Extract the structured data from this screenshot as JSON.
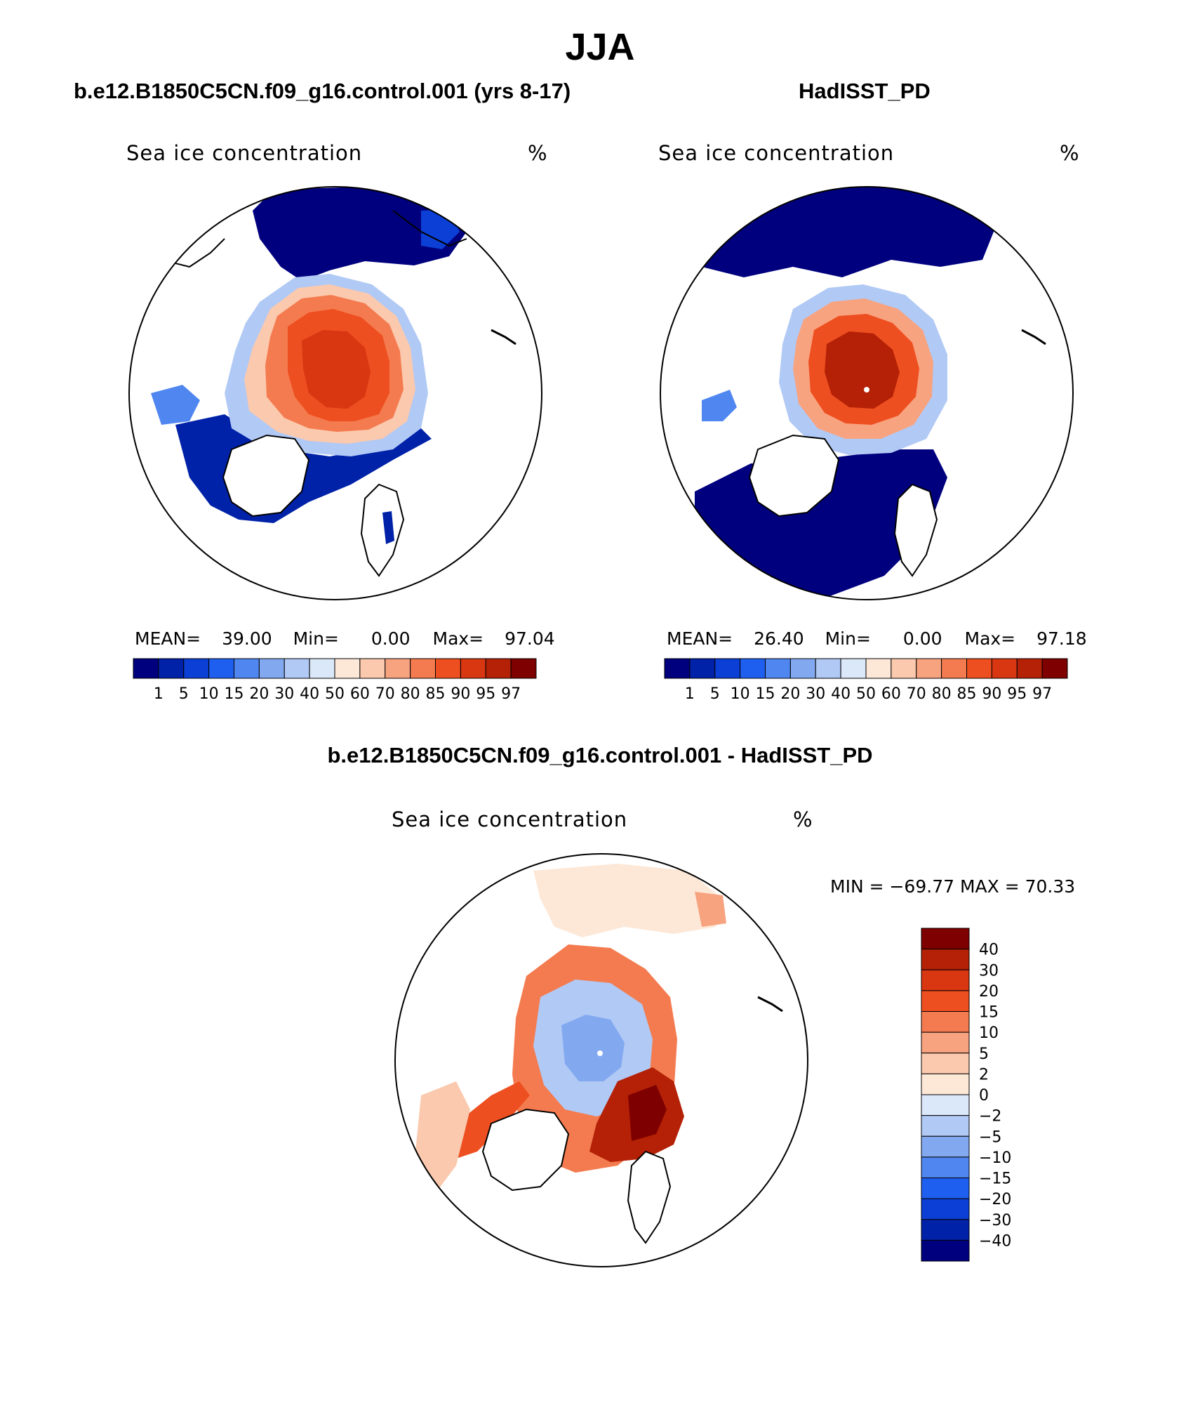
{
  "page": {
    "title": "JJA"
  },
  "panels": [
    {
      "id": "model",
      "title": "b.e12.B1850C5CN.f09_g16.control.001 (yrs 8-17)",
      "field": "Sea ice concentration",
      "units": "%",
      "stats": {
        "mean_label": "MEAN=",
        "mean": "39.00",
        "min_label": "Min=",
        "min": "0.00",
        "max_label": "Max=",
        "max": "97.04"
      }
    },
    {
      "id": "obs",
      "title": "HadISST_PD",
      "field": "Sea ice concentration",
      "units": "%",
      "stats": {
        "mean_label": "MEAN=",
        "mean": "26.40",
        "min_label": "Min=",
        "min": "0.00",
        "max_label": "Max=",
        "max": "97.18"
      }
    },
    {
      "id": "diff",
      "title": "b.e12.B1850C5CN.f09_g16.control.001 - HadISST_PD",
      "field": "Sea ice concentration",
      "units": "%",
      "minmax": "MIN = −69.77 MAX =   70.33"
    }
  ],
  "colorbars": {
    "concentration": {
      "levels": [
        "1",
        "5",
        "10",
        "15",
        "20",
        "30",
        "40",
        "50",
        "60",
        "70",
        "80",
        "85",
        "90",
        "95",
        "97"
      ],
      "colors": [
        "#00007f",
        "#0022a8",
        "#0b3fd6",
        "#1f5ff0",
        "#4f86f0",
        "#82a9f0",
        "#b1c9f5",
        "#dbe8fa",
        "#fde8d8",
        "#fbc9ae",
        "#f8a37f",
        "#f47b4f",
        "#ee4f20",
        "#d93612",
        "#b42106",
        "#7f0000"
      ]
    },
    "difference": {
      "levels": [
        "40",
        "30",
        "20",
        "15",
        "10",
        "5",
        "2",
        "0",
        "−2",
        "−5",
        "−10",
        "−15",
        "−20",
        "−30",
        "−40"
      ],
      "colors": [
        "#7f0000",
        "#b42106",
        "#d93612",
        "#ee4f20",
        "#f47b4f",
        "#f8a37f",
        "#fbc9ae",
        "#fde8d8",
        "#dbe8fa",
        "#b1c9f5",
        "#82a9f0",
        "#4f86f0",
        "#1f5ff0",
        "#0b3fd6",
        "#0022a8",
        "#00007f"
      ]
    }
  }
}
